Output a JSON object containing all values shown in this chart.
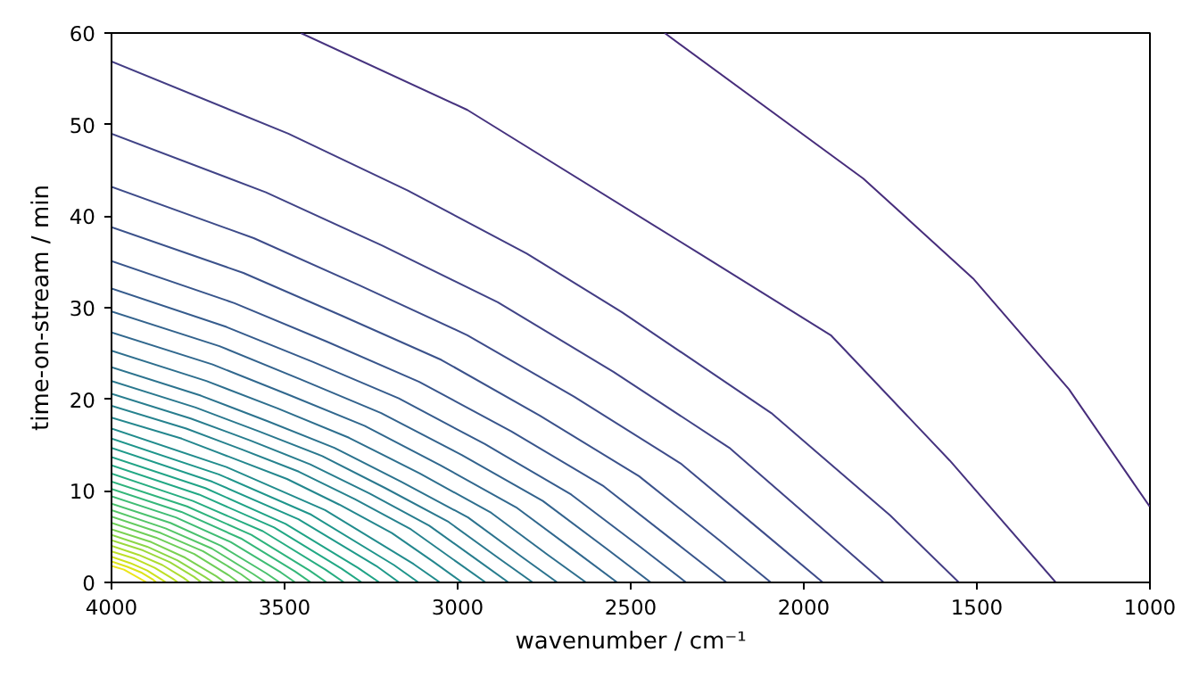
{
  "chart_data": {
    "type": "line",
    "xlabel": "wavenumber / cm⁻¹",
    "ylabel": "time-on-stream / min",
    "xlim": [
      4000,
      1000
    ],
    "ylim": [
      0,
      60
    ],
    "xticks": [
      4000,
      3500,
      3000,
      2500,
      2000,
      1500,
      1000
    ],
    "yticks": [
      0,
      10,
      20,
      30,
      40,
      50,
      60
    ],
    "grid": false,
    "line_style": "solid",
    "series": [
      {
        "color": "#472d7b",
        "x": [
          2402,
          1828,
          1511,
          1234,
          1001
        ],
        "values": [
          60,
          44.1,
          33.2,
          21.1,
          8.3
        ]
      },
      {
        "color": "#46337f",
        "x": [
          3453,
          2972,
          2301,
          1922,
          1578,
          1272
        ],
        "values": [
          60,
          51.6,
          35.9,
          27.0,
          13.3,
          0
        ]
      },
      {
        "color": "#433d84",
        "x": [
          4000,
          3489,
          3144,
          2800,
          2525,
          2094,
          1750,
          1552
        ],
        "values": [
          56.9,
          49.0,
          42.8,
          35.9,
          29.5,
          18.5,
          7.3,
          0
        ]
      },
      {
        "color": "#414487",
        "x": [
          4000,
          3554,
          3219,
          2884,
          2550,
          2215,
          1947,
          1769
        ],
        "values": [
          49.0,
          42.6,
          36.8,
          30.6,
          23.0,
          14.7,
          5.9,
          0
        ]
      },
      {
        "color": "#3e4c8a",
        "x": [
          4000,
          3589,
          3281,
          2972,
          2664,
          2356,
          2109,
          1945
        ],
        "values": [
          43.2,
          37.6,
          32.4,
          27.0,
          20.3,
          13.0,
          5.2,
          0
        ]
      },
      {
        "color": "#3b528b",
        "x": [
          4000,
          3619,
          3333,
          3047,
          2762,
          2476,
          2247,
          2095
        ],
        "values": [
          38.8,
          33.8,
          29.1,
          24.3,
          18.2,
          11.6,
          4.7,
          0
        ]
      },
      {
        "color": "#39568c",
        "x": [
          4000,
          3645,
          3378,
          3111,
          2845,
          2578,
          2365,
          2223
        ],
        "values": [
          35.1,
          30.5,
          26.3,
          21.9,
          16.5,
          10.5,
          4.2,
          0
        ]
      },
      {
        "color": "#365c8d",
        "x": [
          4000,
          3668,
          3419,
          3170,
          2921,
          2672,
          2473,
          2340
        ],
        "values": [
          32.1,
          27.9,
          24.1,
          20.1,
          15.1,
          9.6,
          3.9,
          0
        ]
      },
      {
        "color": "#33638d",
        "x": [
          4000,
          3688,
          3455,
          3221,
          2987,
          2754,
          2567,
          2442
        ],
        "values": [
          29.6,
          25.8,
          22.2,
          18.5,
          13.9,
          8.9,
          3.6,
          0
        ]
      },
      {
        "color": "#31688e",
        "x": [
          4000,
          3708,
          3489,
          3269,
          3050,
          2831,
          2656,
          2539
        ],
        "values": [
          27.3,
          23.8,
          20.5,
          17.1,
          12.8,
          8.2,
          3.3,
          0
        ]
      },
      {
        "color": "#2e6f8e",
        "x": [
          4000,
          3726,
          3520,
          3314,
          3109,
          2903,
          2739,
          2629
        ],
        "values": [
          25.3,
          22.0,
          19.0,
          15.8,
          11.9,
          7.6,
          3.0,
          0
        ]
      },
      {
        "color": "#2c738e",
        "x": [
          4000,
          3742,
          3549,
          3356,
          3163,
          2970,
          2815,
          2712
        ],
        "values": [
          23.5,
          20.4,
          17.6,
          14.7,
          11.0,
          7.1,
          2.8,
          0
        ]
      },
      {
        "color": "#2a788e",
        "x": [
          4000,
          3757,
          3574,
          3391,
          3209,
          3026,
          2880,
          2783
        ],
        "values": [
          22.0,
          19.1,
          16.5,
          13.8,
          10.3,
          6.6,
          2.6,
          0
        ]
      },
      {
        "color": "#287d8e",
        "x": [
          4000,
          3771,
          3599,
          3426,
          3254,
          3082,
          2945,
          2853
        ],
        "values": [
          20.6,
          17.9,
          15.5,
          12.9,
          9.7,
          6.2,
          2.5,
          0
        ]
      },
      {
        "color": "#26828e",
        "x": [
          4000,
          3784,
          3622,
          3459,
          3297,
          3135,
          3005,
          2919
        ],
        "values": [
          19.3,
          16.8,
          14.5,
          12.1,
          9.1,
          5.8,
          2.3,
          0
        ]
      },
      {
        "color": "#24878e",
        "x": [
          4000,
          3797,
          3645,
          3493,
          3342,
          3190,
          3068,
          2987
        ],
        "values": [
          18.0,
          15.7,
          13.5,
          11.3,
          8.5,
          5.4,
          2.2,
          0
        ]
      },
      {
        "color": "#228c8d",
        "x": [
          4000,
          3668,
          3383,
          3127,
          3051
        ],
        "values": [
          16.8,
          12.6,
          7.9,
          2.0,
          0
        ]
      },
      {
        "color": "#1f958b",
        "x": [
          4000,
          3690,
          3423,
          3184,
          3113
        ],
        "values": [
          15.7,
          11.8,
          7.4,
          1.9,
          0
        ]
      },
      {
        "color": "#1f9a8a",
        "x": [
          4000,
          3709,
          3460,
          3235,
          3169
        ],
        "values": [
          14.7,
          11.0,
          6.9,
          1.8,
          0
        ]
      },
      {
        "color": "#20a386",
        "x": [
          4000,
          3729,
          3497,
          3288,
          3226
        ],
        "values": [
          13.7,
          10.3,
          6.4,
          1.6,
          0
        ]
      },
      {
        "color": "#22a884",
        "x": [
          4000,
          3747,
          3530,
          3335,
          3277
        ],
        "values": [
          12.8,
          9.6,
          6.0,
          1.5,
          0
        ]
      },
      {
        "color": "#27ad81",
        "x": [
          4000,
          3765,
          3563,
          3382,
          3328
        ],
        "values": [
          11.9,
          8.9,
          5.6,
          1.4,
          0
        ]
      },
      {
        "color": "#2eb37c",
        "x": [
          4000,
          3782,
          3596,
          3428,
          3378
        ],
        "values": [
          11.0,
          8.3,
          5.2,
          1.3,
          0
        ]
      },
      {
        "color": "#35b779",
        "x": [
          4000,
          3798,
          3626,
          3470,
          3424
        ],
        "values": [
          10.2,
          7.7,
          4.8,
          1.2,
          0
        ]
      },
      {
        "color": "#3fbc73",
        "x": [
          4000,
          3814,
          3655,
          3511,
          3469
        ],
        "values": [
          9.4,
          7.1,
          4.4,
          1.1,
          0
        ]
      },
      {
        "color": "#4ac16d",
        "x": [
          4000,
          3830,
          3684,
          3553,
          3514
        ],
        "values": [
          8.6,
          6.5,
          4.0,
          1.0,
          0
        ]
      },
      {
        "color": "#55c667",
        "x": [
          4000,
          3844,
          3710,
          3590,
          3554
        ],
        "values": [
          7.9,
          5.9,
          3.7,
          0.9,
          0
        ]
      },
      {
        "color": "#63cb5f",
        "x": [
          4000,
          3858,
          3735,
          3626,
          3593
        ],
        "values": [
          7.2,
          5.4,
          3.4,
          0.9,
          0
        ]
      },
      {
        "color": "#6ece58",
        "x": [
          4000,
          3872,
          3761,
          3662,
          3633
        ],
        "values": [
          6.5,
          4.9,
          3.1,
          0.8,
          0
        ]
      },
      {
        "color": "#7ad151",
        "x": [
          4000,
          3885,
          3787,
          3698,
          3672
        ],
        "values": [
          5.8,
          4.4,
          2.7,
          0.7,
          0
        ]
      },
      {
        "color": "#8bd646",
        "x": [
          4000,
          3897,
          3809,
          3730,
          3706
        ],
        "values": [
          5.2,
          3.9,
          2.4,
          0.6,
          0
        ]
      },
      {
        "color": "#9bd93c",
        "x": [
          4000,
          3909,
          3831,
          3761,
          3740
        ],
        "values": [
          4.6,
          3.5,
          2.2,
          0.6,
          0
        ]
      },
      {
        "color": "#addc30",
        "x": [
          4000,
          3921,
          3853,
          3792,
          3774
        ],
        "values": [
          4.0,
          3.0,
          1.9,
          0.5,
          0
        ]
      },
      {
        "color": "#bddf26",
        "x": [
          4000,
          3933,
          3875,
          3823,
          3808
        ],
        "values": [
          3.4,
          2.6,
          1.6,
          0.4,
          0
        ]
      },
      {
        "color": "#cde11d",
        "x": [
          4000,
          3945,
          3897,
          3855,
          3842
        ],
        "values": [
          2.8,
          2.1,
          1.3,
          0.3,
          0
        ]
      },
      {
        "color": "#dde318",
        "x": [
          4000,
          3954,
          3915,
          3880,
          3870
        ],
        "values": [
          2.3,
          1.7,
          1.1,
          0.3,
          0
        ]
      },
      {
        "color": "#ece51b",
        "x": [
          4000,
          3964,
          3898
        ],
        "values": [
          1.8,
          1.4,
          0
        ]
      }
    ]
  }
}
